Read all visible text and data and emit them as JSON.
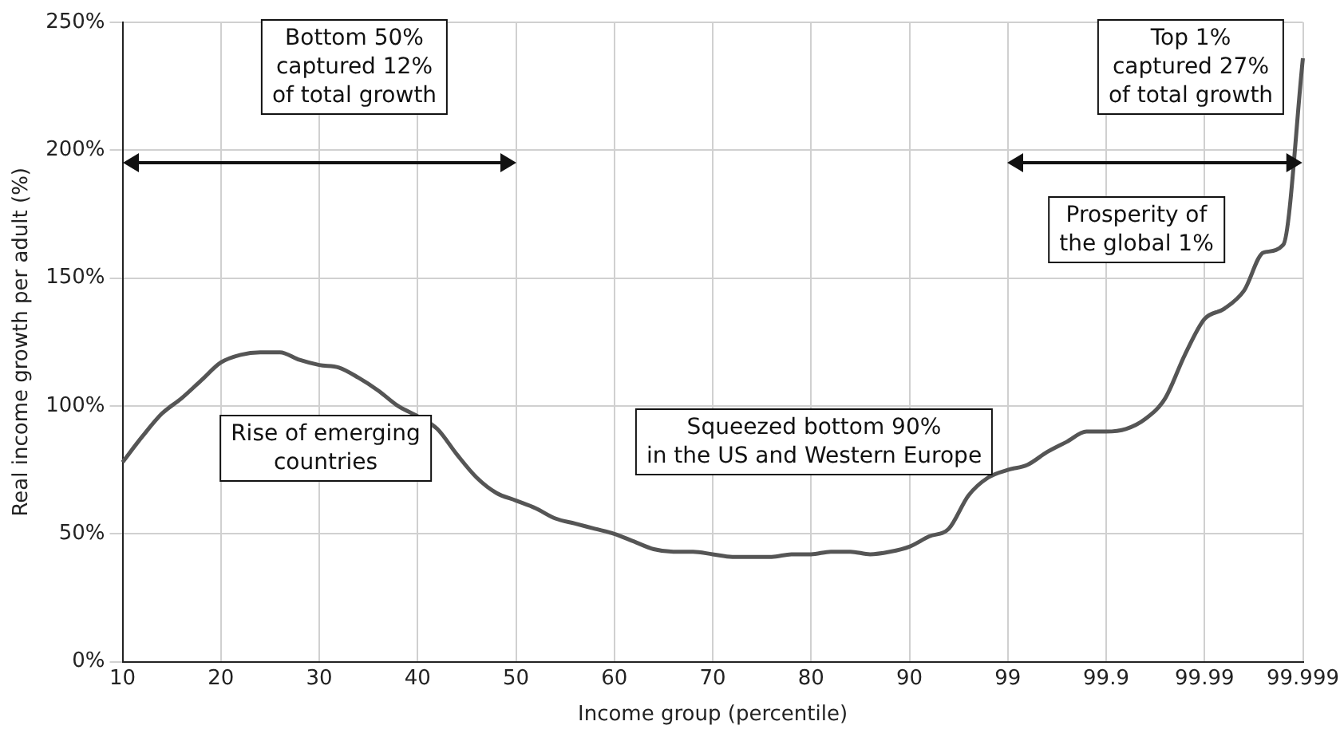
{
  "chart_data": {
    "type": "line",
    "xlabel": "Income group (percentile)",
    "ylabel": "Real income growth per adult (%)",
    "categories": [
      "10",
      null,
      null,
      null,
      null,
      "20",
      null,
      null,
      null,
      null,
      "30",
      null,
      null,
      null,
      null,
      "40",
      null,
      null,
      null,
      null,
      "50",
      null,
      null,
      null,
      null,
      "60",
      null,
      null,
      null,
      null,
      "70",
      null,
      null,
      null,
      null,
      "80",
      null,
      null,
      null,
      null,
      "90",
      null,
      null,
      null,
      null,
      "99",
      null,
      null,
      null,
      null,
      "99.9",
      null,
      null,
      null,
      null,
      "99.99",
      null,
      null,
      null,
      null,
      "99.999"
    ],
    "series": [
      {
        "color": "#555555",
        "values": [
          78,
          88,
          97,
          103,
          110,
          117,
          120,
          121,
          121,
          118,
          116,
          115,
          111,
          106,
          100,
          96,
          91,
          81,
          72,
          66,
          63,
          60,
          56,
          54,
          52,
          50,
          47,
          44,
          43,
          43,
          42,
          41,
          41,
          41,
          42,
          42,
          43,
          43,
          42,
          43,
          45,
          49,
          52,
          65,
          72,
          75,
          77,
          82,
          86,
          90,
          90,
          91,
          95,
          103,
          120,
          134,
          138,
          145,
          160,
          163,
          236
        ]
      }
    ],
    "ylim": [
      0,
      250
    ],
    "yticks": [
      {
        "value": 0,
        "label": "0%"
      },
      {
        "value": 50,
        "label": "50%"
      },
      {
        "value": 100,
        "label": "100%"
      },
      {
        "value": 150,
        "label": "150%"
      },
      {
        "value": 200,
        "label": "200%"
      },
      {
        "value": 250,
        "label": "250%"
      }
    ],
    "grid": true,
    "marker": "none",
    "line_style": "solid",
    "annotations": [
      "Bottom 50%\ncaptured 12%\nof total growth",
      "Top 1%\ncaptured 27%\nof total growth",
      "Prosperity of\nthe global 1%",
      "Rise of emerging\ncountries",
      "Squeezed bottom 90%\nin the US and Western Europe"
    ]
  }
}
